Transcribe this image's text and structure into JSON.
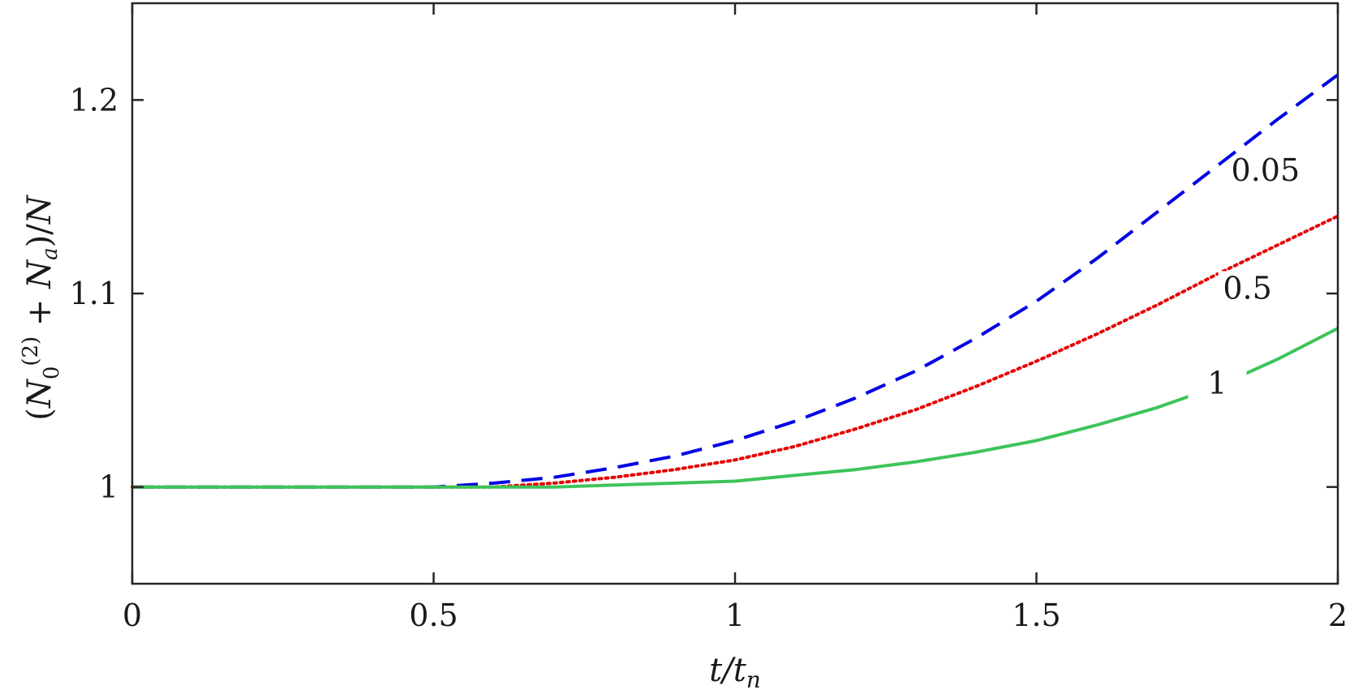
{
  "chart_data": {
    "type": "line",
    "title": "",
    "xlabel": "t/t_n",
    "ylabel": "(N_0^(2) + N_a)/N",
    "xlim": [
      0,
      2
    ],
    "ylim": [
      0.95,
      1.25
    ],
    "xticks": [
      0,
      0.5,
      1,
      1.5,
      2
    ],
    "xtick_labels": [
      "0",
      "0.5",
      "1",
      "1.5",
      "2"
    ],
    "yticks": [
      1,
      1.1,
      1.2
    ],
    "ytick_labels": [
      "1",
      "1.1",
      "1.2"
    ],
    "grid": false,
    "legend": "none",
    "series": [
      {
        "label": "0.05",
        "color": "#0000e6",
        "dash": "dashed",
        "x": [
          0,
          0.25,
          0.5,
          0.6,
          0.7,
          0.8,
          0.9,
          1.0,
          1.1,
          1.2,
          1.3,
          1.4,
          1.5,
          1.6,
          1.7,
          1.8,
          1.9,
          2.0
        ],
        "y": [
          1.0,
          1.0,
          1.0,
          1.002,
          1.005,
          1.01,
          1.016,
          1.024,
          1.034,
          1.046,
          1.06,
          1.077,
          1.096,
          1.118,
          1.142,
          1.166,
          1.19,
          1.213
        ]
      },
      {
        "label": "0.5",
        "color": "#e60000",
        "dash": "dotted",
        "x": [
          0,
          0.25,
          0.5,
          0.6,
          0.7,
          0.8,
          0.9,
          1.0,
          1.1,
          1.2,
          1.3,
          1.4,
          1.5,
          1.6,
          1.7,
          1.8,
          1.9,
          2.0
        ],
        "y": [
          1.0,
          1.0,
          1.0,
          1.0,
          1.002,
          1.005,
          1.009,
          1.014,
          1.021,
          1.03,
          1.04,
          1.052,
          1.065,
          1.079,
          1.094,
          1.11,
          1.125,
          1.14
        ]
      },
      {
        "label": "1",
        "color": "#3dc45a",
        "dash": "solid",
        "x": [
          0,
          0.25,
          0.5,
          0.6,
          0.7,
          0.8,
          0.9,
          1.0,
          1.1,
          1.2,
          1.3,
          1.4,
          1.5,
          1.6,
          1.7,
          1.8,
          1.9,
          2.0
        ],
        "y": [
          1.0,
          1.0,
          1.0,
          1.0,
          1.0,
          1.001,
          1.002,
          1.003,
          1.006,
          1.009,
          1.013,
          1.018,
          1.024,
          1.032,
          1.041,
          1.052,
          1.066,
          1.082
        ]
      }
    ],
    "curve_labels": [
      {
        "text": "0.05",
        "x": 1.88,
        "y": 1.16
      },
      {
        "text": "0.5",
        "x": 1.85,
        "y": 1.099
      },
      {
        "text": "1",
        "x": 1.8,
        "y": 1.05
      }
    ]
  }
}
